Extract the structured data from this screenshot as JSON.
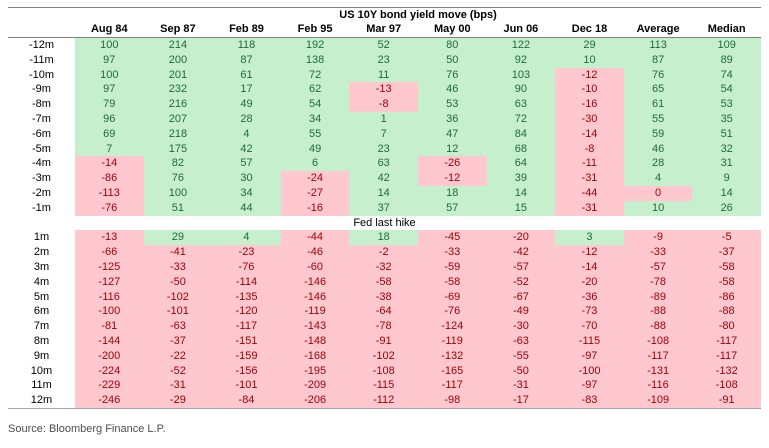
{
  "source": "Source: Bloomberg Finance L.P.",
  "colors": {
    "positive_bg": "#c6efce",
    "positive_text": "#1e6b3c",
    "negative_bg": "#ffc7ce",
    "negative_text": "#9c0006",
    "border_gray": "#7f7f7f"
  },
  "chart_data": {
    "type": "table",
    "title": "US 10Y bond yield move (bps)",
    "divider_label": "Fed last hike",
    "color_rule": "value > 0 green, value <= 0 pink",
    "columns": [
      "Aug 84",
      "Sep 87",
      "Feb 89",
      "Feb 95",
      "Mar 97",
      "May 00",
      "Jun 06",
      "Dec 18",
      "Average",
      "Median"
    ],
    "rows_before_hike": [
      {
        "label": "-12m",
        "values": [
          100,
          214,
          118,
          192,
          52,
          80,
          122,
          29,
          113,
          109
        ]
      },
      {
        "label": "-11m",
        "values": [
          97,
          200,
          87,
          138,
          23,
          50,
          92,
          10,
          87,
          89
        ]
      },
      {
        "label": "-10m",
        "values": [
          100,
          201,
          61,
          72,
          11,
          76,
          103,
          -12,
          76,
          74
        ]
      },
      {
        "label": "-9m",
        "values": [
          97,
          232,
          17,
          62,
          -13,
          46,
          90,
          -10,
          65,
          54
        ]
      },
      {
        "label": "-8m",
        "values": [
          79,
          216,
          49,
          54,
          -8,
          53,
          63,
          -16,
          61,
          53
        ]
      },
      {
        "label": "-7m",
        "values": [
          96,
          207,
          28,
          34,
          1,
          36,
          72,
          -30,
          55,
          35
        ]
      },
      {
        "label": "-6m",
        "values": [
          69,
          218,
          4,
          55,
          7,
          47,
          84,
          -14,
          59,
          51
        ]
      },
      {
        "label": "-5m",
        "values": [
          7,
          175,
          42,
          49,
          23,
          12,
          68,
          -8,
          46,
          32
        ]
      },
      {
        "label": "-4m",
        "values": [
          -14,
          82,
          57,
          6,
          63,
          -26,
          64,
          -11,
          28,
          31
        ]
      },
      {
        "label": "-3m",
        "values": [
          -86,
          76,
          30,
          -24,
          42,
          -12,
          39,
          -31,
          4,
          9
        ]
      },
      {
        "label": "-2m",
        "values": [
          -113,
          100,
          34,
          -27,
          14,
          18,
          14,
          -44,
          0,
          14
        ]
      },
      {
        "label": "-1m",
        "values": [
          -76,
          51,
          44,
          -16,
          37,
          57,
          15,
          -31,
          10,
          26
        ]
      }
    ],
    "rows_after_hike": [
      {
        "label": "1m",
        "values": [
          -13,
          29,
          4,
          -44,
          18,
          -45,
          -20,
          3,
          -9,
          -5
        ]
      },
      {
        "label": "2m",
        "values": [
          -66,
          -41,
          -23,
          -46,
          -2,
          -33,
          -42,
          -12,
          -33,
          -37
        ]
      },
      {
        "label": "3m",
        "values": [
          -125,
          -33,
          -76,
          -60,
          -32,
          -59,
          -57,
          -14,
          -57,
          -58
        ]
      },
      {
        "label": "4m",
        "values": [
          -127,
          -50,
          -114,
          -146,
          -58,
          -58,
          -52,
          -20,
          -78,
          -58
        ]
      },
      {
        "label": "5m",
        "values": [
          -116,
          -102,
          -135,
          -146,
          -38,
          -69,
          -67,
          -36,
          -89,
          -86
        ]
      },
      {
        "label": "6m",
        "values": [
          -100,
          -101,
          -120,
          -119,
          -64,
          -76,
          -49,
          -73,
          -88,
          -88
        ]
      },
      {
        "label": "7m",
        "values": [
          -81,
          -63,
          -117,
          -143,
          -78,
          -124,
          -30,
          -70,
          -88,
          -80
        ]
      },
      {
        "label": "8m",
        "values": [
          -144,
          -37,
          -151,
          -148,
          -91,
          -119,
          -63,
          -115,
          -108,
          -117
        ]
      },
      {
        "label": "9m",
        "values": [
          -200,
          -22,
          -159,
          -168,
          -102,
          -132,
          -55,
          -97,
          -117,
          -117
        ]
      },
      {
        "label": "10m",
        "values": [
          -224,
          -52,
          -156,
          -195,
          -108,
          -165,
          -50,
          -100,
          -131,
          -132
        ]
      },
      {
        "label": "11m",
        "values": [
          -229,
          -31,
          -101,
          -209,
          -115,
          -117,
          -31,
          -97,
          -116,
          -108
        ]
      },
      {
        "label": "12m",
        "values": [
          -246,
          -29,
          -84,
          -206,
          -112,
          -98,
          -17,
          -83,
          -109,
          -91
        ]
      }
    ]
  }
}
